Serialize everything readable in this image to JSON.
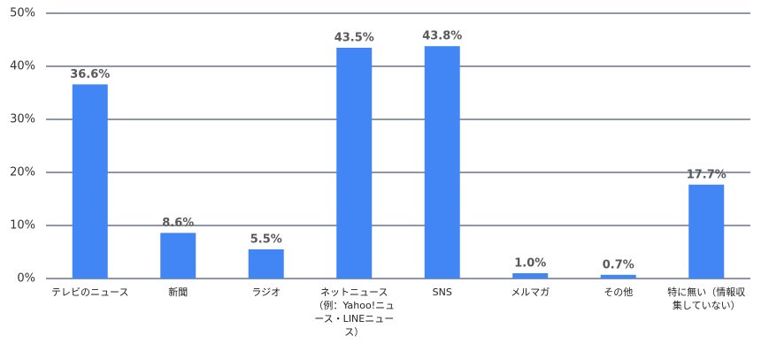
{
  "chart_data": {
    "type": "bar",
    "categories": [
      "テレビのニュース",
      "新聞",
      "ラジオ",
      "ネットニュース（例：Yahoo!ニュース・LINEニュース）",
      "SNS",
      "メルマガ",
      "その他",
      "特に無い（情報収集していない）"
    ],
    "values": [
      36.6,
      8.6,
      5.5,
      43.5,
      43.8,
      1.0,
      0.7,
      17.7
    ],
    "value_labels": [
      "36.6%",
      "8.6%",
      "5.5%",
      "43.5%",
      "43.8%",
      "1.0%",
      "0.7%",
      "17.7%"
    ],
    "color": "#4285f4",
    "ylim": [
      0,
      50
    ],
    "yticks": [
      {
        "value": 0,
        "label": "0%"
      },
      {
        "value": 10,
        "label": "10%"
      },
      {
        "value": 20,
        "label": "20%"
      },
      {
        "value": 30,
        "label": "30%"
      },
      {
        "value": 40,
        "label": "40%"
      },
      {
        "value": 50,
        "label": "50%"
      }
    ],
    "grid": true
  }
}
